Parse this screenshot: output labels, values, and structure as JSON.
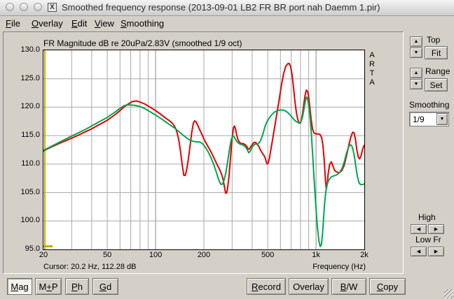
{
  "window": {
    "title": "Smoothed frequency response (2013-09-01 LB2 FR BR port nah Daemm 1.pir)",
    "x11_icon": "X"
  },
  "menu": {
    "items": [
      {
        "key": "F",
        "post": "ile"
      },
      {
        "key": "O",
        "post": "verlay"
      },
      {
        "key": "E",
        "post": "dit"
      },
      {
        "key": "V",
        "post": "iew"
      },
      {
        "key": "S",
        "post": "moothing"
      }
    ]
  },
  "chart": {
    "title": "FR Magnitude dB re 20uPa/2.83V (smoothed 1/9 oct)",
    "watermark": "ARTA",
    "cursor_status": "Cursor: 20.2 Hz, 112.28 dB",
    "x_axis_label": "Frequency (Hz)"
  },
  "controls": {
    "top_label": "Top",
    "fit_button": "Fit",
    "range_label": "Range",
    "set_button": "Set",
    "smoothing_label": "Smoothing",
    "smoothing_value": "1/9",
    "high_label": "High",
    "low_label": "Low Fr",
    "up_glyph": "▲",
    "down_glyph": "▼",
    "left_glyph": "◀",
    "right_glyph": "▶"
  },
  "toolbar": {
    "buttons_left": [
      {
        "pre": "",
        "key": "M",
        "post": "ag"
      },
      {
        "pre": "M",
        "key": "+",
        "post": "P"
      },
      {
        "pre": "",
        "key": "P",
        "post": "h"
      },
      {
        "pre": "",
        "key": "G",
        "post": "d"
      }
    ],
    "buttons_right": [
      {
        "pre": "",
        "key": "R",
        "post": "ecord"
      },
      {
        "pre": "Overlay",
        "key": "",
        "post": ""
      },
      {
        "pre": "",
        "key": "B",
        "post": "/W"
      },
      {
        "pre": "",
        "key": "C",
        "post": "opy"
      }
    ]
  },
  "chart_data": {
    "type": "line",
    "title": "FR Magnitude dB re 20uPa/2.83V (smoothed 1/9 oct)",
    "xlabel": "Frequency (Hz)",
    "ylabel": "dB",
    "x_scale": "log",
    "x_range": [
      20,
      2000
    ],
    "y_range": [
      95,
      130
    ],
    "grid": true,
    "x_ticks": [
      {
        "f": 20,
        "label": "20"
      },
      {
        "f": 50,
        "label": "50"
      },
      {
        "f": 100,
        "label": "100"
      },
      {
        "f": 200,
        "label": "200"
      },
      {
        "f": 500,
        "label": "500"
      },
      {
        "f": 1000,
        "label": "1k"
      },
      {
        "f": 2000,
        "label": "2k"
      }
    ],
    "x_grid": [
      30,
      40,
      50,
      60,
      70,
      80,
      90,
      100,
      200,
      300,
      400,
      500,
      600,
      700,
      800,
      900,
      1000
    ],
    "grid_major": [
      100,
      1000
    ],
    "y_grid": [
      100,
      105,
      110,
      115,
      120,
      125
    ],
    "y_labels": [
      130,
      125,
      120,
      115,
      110,
      105,
      100,
      95
    ],
    "cursor": {
      "hz": 20.2,
      "db": 112.28
    },
    "colors": {
      "grid": "#a8a8a8",
      "grid_major": "#8a8a8a",
      "cursor": "#c8a800",
      "plot_bg": "#ffffff",
      "frame": "#000000"
    },
    "series": [
      {
        "name": "red",
        "color": "#e60000",
        "points": [
          [
            20,
            112.3
          ],
          [
            22,
            112.9
          ],
          [
            25,
            113.6
          ],
          [
            28,
            114.2
          ],
          [
            32,
            114.9
          ],
          [
            36,
            115.6
          ],
          [
            40,
            116.2
          ],
          [
            45,
            117.0
          ],
          [
            50,
            117.7
          ],
          [
            56,
            118.7
          ],
          [
            60,
            119.4
          ],
          [
            64,
            120.1
          ],
          [
            68,
            120.6
          ],
          [
            72,
            121.0
          ],
          [
            76,
            121.1
          ],
          [
            80,
            120.9
          ],
          [
            85,
            120.6
          ],
          [
            90,
            120.2
          ],
          [
            95,
            119.8
          ],
          [
            100,
            119.4
          ],
          [
            107,
            118.8
          ],
          [
            114,
            118.2
          ],
          [
            121,
            117.7
          ],
          [
            127,
            117.2
          ],
          [
            131,
            116.7
          ],
          [
            135,
            115.9
          ],
          [
            139,
            114.5
          ],
          [
            143,
            112.3
          ],
          [
            147,
            109.6
          ],
          [
            150,
            108.0
          ],
          [
            153,
            108.0
          ],
          [
            156,
            108.9
          ],
          [
            160,
            110.8
          ],
          [
            164,
            113.2
          ],
          [
            168,
            115.6
          ],
          [
            172,
            117.2
          ],
          [
            175,
            117.6
          ],
          [
            179,
            117.4
          ],
          [
            184,
            116.7
          ],
          [
            190,
            115.8
          ],
          [
            196,
            115.0
          ],
          [
            200,
            114.4
          ],
          [
            210,
            113.3
          ],
          [
            220,
            112.3
          ],
          [
            230,
            111.2
          ],
          [
            240,
            110.1
          ],
          [
            250,
            109.1
          ],
          [
            258,
            108.2
          ],
          [
            264,
            107.2
          ],
          [
            269,
            105.9
          ],
          [
            273,
            104.9
          ],
          [
            277,
            104.9
          ],
          [
            281,
            105.7
          ],
          [
            286,
            107.5
          ],
          [
            291,
            110.0
          ],
          [
            296,
            112.6
          ],
          [
            301,
            115.0
          ],
          [
            306,
            116.4
          ],
          [
            310,
            116.7
          ],
          [
            315,
            116.2
          ],
          [
            320,
            115.2
          ],
          [
            327,
            114.2
          ],
          [
            334,
            113.8
          ],
          [
            342,
            113.6
          ],
          [
            352,
            113.6
          ],
          [
            362,
            113.4
          ],
          [
            370,
            113.1
          ],
          [
            377,
            112.7
          ],
          [
            383,
            112.6
          ],
          [
            391,
            113.0
          ],
          [
            400,
            113.4
          ],
          [
            410,
            113.8
          ],
          [
            420,
            113.8
          ],
          [
            430,
            113.5
          ],
          [
            440,
            113.1
          ],
          [
            452,
            112.4
          ],
          [
            463,
            111.9
          ],
          [
            474,
            111.5
          ],
          [
            483,
            111.0
          ],
          [
            491,
            110.3
          ],
          [
            497,
            110.0
          ],
          [
            503,
            110.2
          ],
          [
            512,
            111.0
          ],
          [
            522,
            112.4
          ],
          [
            535,
            114.2
          ],
          [
            550,
            116.2
          ],
          [
            568,
            118.6
          ],
          [
            588,
            121.2
          ],
          [
            608,
            123.8
          ],
          [
            628,
            125.9
          ],
          [
            648,
            127.2
          ],
          [
            665,
            127.6
          ],
          [
            680,
            127.7
          ],
          [
            695,
            127.1
          ],
          [
            710,
            125.6
          ],
          [
            725,
            123.3
          ],
          [
            740,
            120.9
          ],
          [
            755,
            119.0
          ],
          [
            770,
            117.8
          ],
          [
            783,
            117.2
          ],
          [
            797,
            117.2
          ],
          [
            810,
            117.7
          ],
          [
            825,
            118.9
          ],
          [
            840,
            120.6
          ],
          [
            855,
            122.1
          ],
          [
            870,
            123.0
          ],
          [
            885,
            122.8
          ],
          [
            900,
            121.8
          ],
          [
            915,
            120.0
          ],
          [
            932,
            117.9
          ],
          [
            950,
            116.2
          ],
          [
            970,
            115.5
          ],
          [
            1000,
            115.3
          ],
          [
            1030,
            115.3
          ],
          [
            1060,
            115.2
          ],
          [
            1085,
            114.6
          ],
          [
            1105,
            113.2
          ],
          [
            1125,
            110.6
          ],
          [
            1145,
            107.2
          ],
          [
            1158,
            105.6
          ],
          [
            1172,
            106.3
          ],
          [
            1190,
            108.3
          ],
          [
            1215,
            109.9
          ],
          [
            1245,
            110.4
          ],
          [
            1275,
            109.7
          ],
          [
            1305,
            108.9
          ],
          [
            1345,
            108.6
          ],
          [
            1395,
            108.5
          ],
          [
            1445,
            108.8
          ],
          [
            1495,
            109.7
          ],
          [
            1545,
            111.3
          ],
          [
            1595,
            113.1
          ],
          [
            1645,
            114.7
          ],
          [
            1690,
            115.6
          ],
          [
            1725,
            115.5
          ],
          [
            1760,
            114.4
          ],
          [
            1795,
            112.6
          ],
          [
            1835,
            111.2
          ],
          [
            1870,
            110.9
          ],
          [
            1905,
            111.4
          ],
          [
            1945,
            112.4
          ],
          [
            1975,
            113.0
          ],
          [
            2000,
            113.3
          ]
        ]
      },
      {
        "name": "green",
        "color": "#00a651",
        "points": [
          [
            20,
            112.4
          ],
          [
            22,
            113.0
          ],
          [
            25,
            113.8
          ],
          [
            28,
            114.5
          ],
          [
            32,
            115.3
          ],
          [
            36,
            116.0
          ],
          [
            40,
            116.7
          ],
          [
            45,
            117.5
          ],
          [
            50,
            118.2
          ],
          [
            55,
            119.0
          ],
          [
            60,
            119.8
          ],
          [
            63,
            120.2
          ],
          [
            66,
            120.4
          ],
          [
            70,
            120.4
          ],
          [
            75,
            120.3
          ],
          [
            80,
            120.1
          ],
          [
            85,
            119.8
          ],
          [
            90,
            119.4
          ],
          [
            95,
            119.0
          ],
          [
            100,
            118.6
          ],
          [
            108,
            118.0
          ],
          [
            116,
            117.4
          ],
          [
            124,
            116.8
          ],
          [
            132,
            116.3
          ],
          [
            140,
            115.7
          ],
          [
            148,
            115.1
          ],
          [
            156,
            114.6
          ],
          [
            164,
            114.2
          ],
          [
            172,
            114.0
          ],
          [
            180,
            113.9
          ],
          [
            188,
            113.9
          ],
          [
            196,
            113.6
          ],
          [
            200,
            113.3
          ],
          [
            206,
            112.8
          ],
          [
            213,
            112.1
          ],
          [
            221,
            111.2
          ],
          [
            229,
            110.1
          ],
          [
            237,
            108.9
          ],
          [
            245,
            107.6
          ],
          [
            251,
            106.8
          ],
          [
            256,
            106.4
          ],
          [
            261,
            106.5
          ],
          [
            267,
            107.1
          ],
          [
            274,
            108.4
          ],
          [
            281,
            110.3
          ],
          [
            288,
            112.4
          ],
          [
            295,
            114.1
          ],
          [
            301,
            114.9
          ],
          [
            307,
            114.9
          ],
          [
            313,
            114.5
          ],
          [
            320,
            114.0
          ],
          [
            328,
            113.7
          ],
          [
            337,
            113.5
          ],
          [
            347,
            113.4
          ],
          [
            357,
            113.2
          ],
          [
            366,
            112.9
          ],
          [
            374,
            112.4
          ],
          [
            381,
            112.0
          ],
          [
            388,
            112.2
          ],
          [
            396,
            112.7
          ],
          [
            405,
            113.2
          ],
          [
            415,
            113.5
          ],
          [
            426,
            113.5
          ],
          [
            437,
            113.6
          ],
          [
            447,
            113.9
          ],
          [
            458,
            114.6
          ],
          [
            470,
            115.6
          ],
          [
            482,
            116.7
          ],
          [
            494,
            117.4
          ],
          [
            506,
            117.9
          ],
          [
            520,
            118.4
          ],
          [
            535,
            118.8
          ],
          [
            555,
            119.2
          ],
          [
            578,
            119.4
          ],
          [
            600,
            119.5
          ],
          [
            625,
            119.5
          ],
          [
            648,
            119.3
          ],
          [
            670,
            119.0
          ],
          [
            692,
            118.6
          ],
          [
            714,
            118.1
          ],
          [
            736,
            117.7
          ],
          [
            758,
            117.4
          ],
          [
            778,
            117.3
          ],
          [
            795,
            117.3
          ],
          [
            810,
            117.6
          ],
          [
            824,
            118.3
          ],
          [
            838,
            119.4
          ],
          [
            852,
            120.6
          ],
          [
            864,
            121.4
          ],
          [
            874,
            121.8
          ],
          [
            884,
            121.6
          ],
          [
            894,
            120.9
          ],
          [
            906,
            119.7
          ],
          [
            920,
            117.9
          ],
          [
            935,
            115.3
          ],
          [
            950,
            112.2
          ],
          [
            965,
            109.0
          ],
          [
            980,
            105.8
          ],
          [
            1000,
            102.2
          ],
          [
            1020,
            99.0
          ],
          [
            1042,
            96.5
          ],
          [
            1062,
            95.5
          ],
          [
            1080,
            95.8
          ],
          [
            1098,
            97.8
          ],
          [
            1115,
            100.6
          ],
          [
            1132,
            103.2
          ],
          [
            1150,
            105.1
          ],
          [
            1170,
            106.3
          ],
          [
            1200,
            107.2
          ],
          [
            1240,
            107.7
          ],
          [
            1280,
            107.9
          ],
          [
            1320,
            108.0
          ],
          [
            1365,
            108.2
          ],
          [
            1410,
            108.6
          ],
          [
            1455,
            109.3
          ],
          [
            1500,
            110.4
          ],
          [
            1545,
            111.8
          ],
          [
            1590,
            112.9
          ],
          [
            1630,
            113.4
          ],
          [
            1665,
            113.3
          ],
          [
            1700,
            112.6
          ],
          [
            1735,
            111.3
          ],
          [
            1775,
            109.4
          ],
          [
            1815,
            107.7
          ],
          [
            1855,
            106.7
          ],
          [
            1895,
            106.4
          ],
          [
            1940,
            106.4
          ],
          [
            2000,
            106.5
          ]
        ]
      }
    ]
  }
}
